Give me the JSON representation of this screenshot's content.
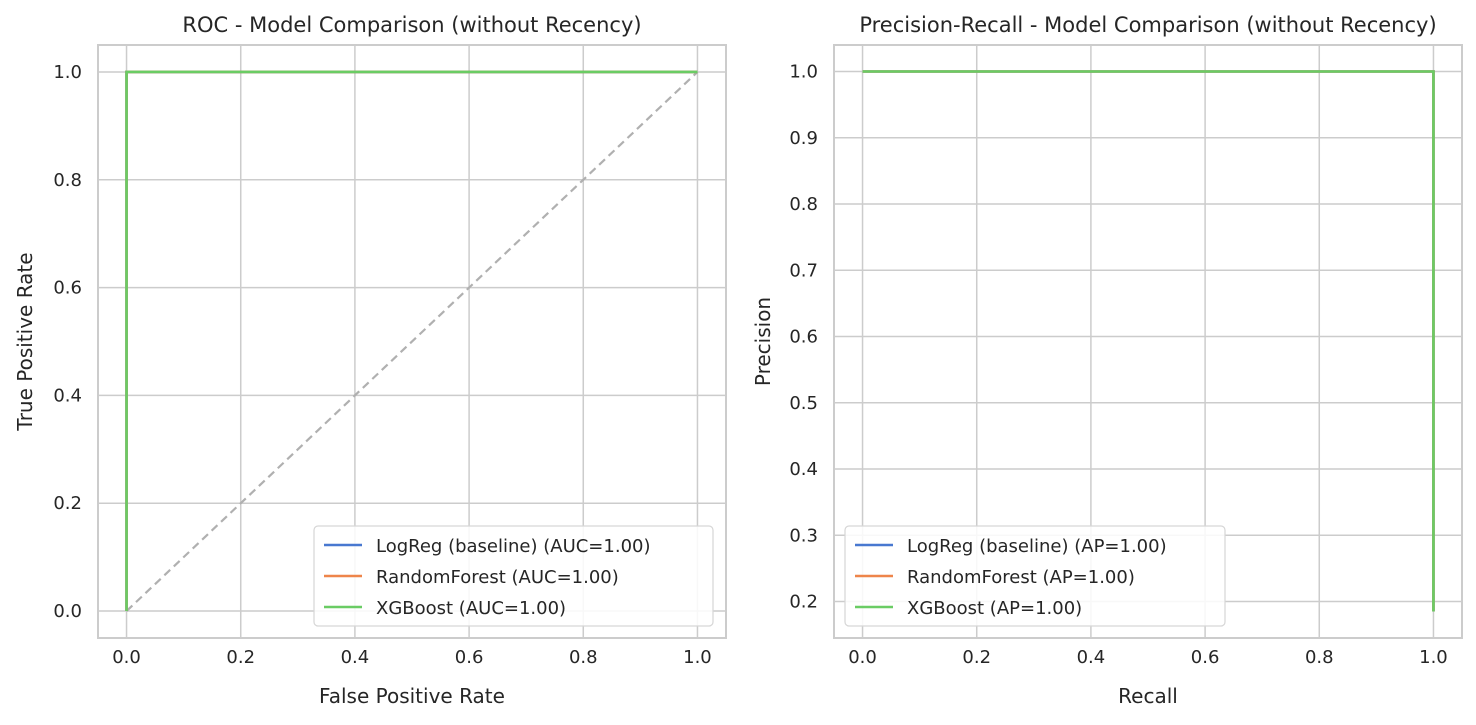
{
  "chart_data": [
    {
      "type": "line",
      "title": "ROC - Model Comparison (without Recency)",
      "xlabel": "False Positive Rate",
      "ylabel": "True Positive Rate",
      "xlim": [
        -0.05,
        1.05
      ],
      "ylim": [
        -0.05,
        1.05
      ],
      "x_ticks": [
        "0.0",
        "0.2",
        "0.4",
        "0.6",
        "0.8",
        "1.0"
      ],
      "y_ticks": [
        "0.0",
        "0.2",
        "0.4",
        "0.6",
        "0.8",
        "1.0"
      ],
      "grid": true,
      "legend_position": "lower right",
      "series": [
        {
          "name": "LogReg (baseline) (AUC=1.00)",
          "color": "#4878d0",
          "x": [
            0,
            0,
            1
          ],
          "y": [
            0,
            1,
            1
          ]
        },
        {
          "name": "RandomForest (AUC=1.00)",
          "color": "#ee854a",
          "x": [
            0,
            0,
            1
          ],
          "y": [
            0,
            1,
            1
          ]
        },
        {
          "name": "XGBoost (AUC=1.00)",
          "color": "#6acc64",
          "x": [
            0,
            0,
            1
          ],
          "y": [
            0,
            1,
            1
          ]
        }
      ],
      "reference_line": {
        "x": [
          0,
          1
        ],
        "y": [
          0,
          1
        ],
        "color": "#b0b0b0",
        "style": "dashed"
      }
    },
    {
      "type": "line",
      "title": "Precision-Recall - Model Comparison (without Recency)",
      "xlabel": "Recall",
      "ylabel": "Precision",
      "xlim": [
        -0.05,
        1.05
      ],
      "ylim": [
        0.145,
        1.04
      ],
      "x_ticks": [
        "0.0",
        "0.2",
        "0.4",
        "0.6",
        "0.8",
        "1.0"
      ],
      "y_ticks": [
        "0.2",
        "0.3",
        "0.4",
        "0.5",
        "0.6",
        "0.7",
        "0.8",
        "0.9",
        "1.0"
      ],
      "grid": true,
      "legend_position": "lower left",
      "series": [
        {
          "name": "LogReg (baseline) (AP=1.00)",
          "color": "#4878d0",
          "x": [
            0,
            1,
            1
          ],
          "y": [
            1,
            1,
            0.185
          ]
        },
        {
          "name": "RandomForest (AP=1.00)",
          "color": "#ee854a",
          "x": [
            0,
            1,
            1
          ],
          "y": [
            1,
            1,
            0.185
          ]
        },
        {
          "name": "XGBoost (AP=1.00)",
          "color": "#6acc64",
          "x": [
            0,
            1,
            1
          ],
          "y": [
            1,
            1,
            0.185
          ]
        }
      ]
    }
  ]
}
